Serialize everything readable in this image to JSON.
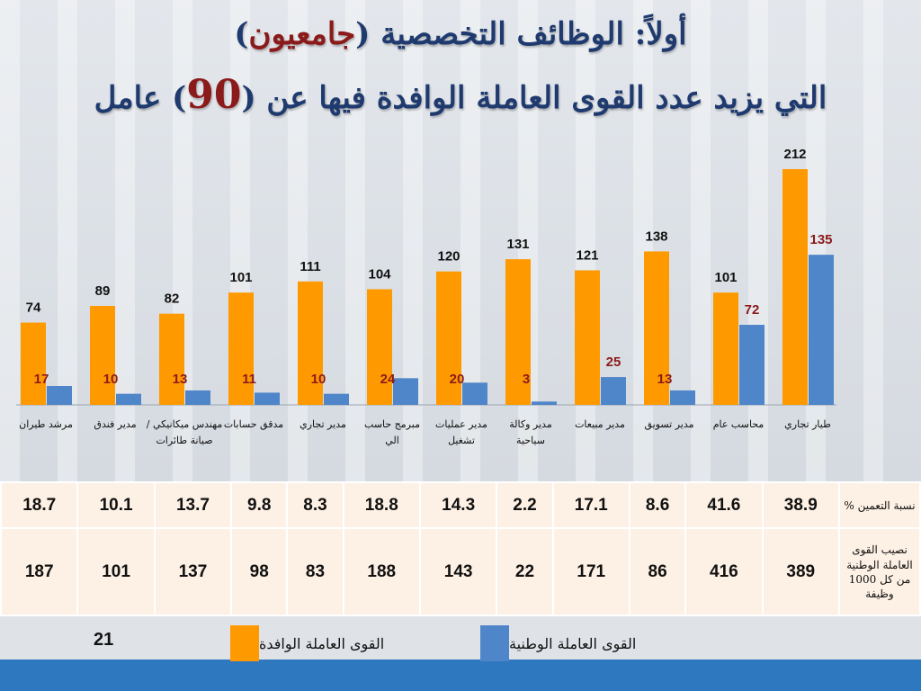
{
  "title_line1": "أولاً: الوظائف التخصصية (",
  "title_line1_highlight": "جامعيون",
  "title_line1_end": ")",
  "title_line2_start": "التي يزيد عدد القوى العاملة الوافدة فيها عن (",
  "title_line2_number": "90",
  "title_line2_end": ")  عامل",
  "colors": {
    "expat": "#ff9900",
    "national": "#4f85c9",
    "national_label": "#8b1a1a",
    "title": "#1f3a6e"
  },
  "chart_data": {
    "type": "bar",
    "categories": [
      "طيار تجاري",
      "محاسب عام",
      "مدير تسويق",
      "مدير مبيعات",
      "مدير وكالة سياحية",
      "مدير عمليات تشغيل",
      "مبرمج حاسب الي",
      "مدير تجاري",
      "مدقق حسابات",
      "مهندس ميكانيكي / صيانة طائرات",
      "مدير فندق",
      "مرشد طيران"
    ],
    "series": [
      {
        "name": "القوى العاملة الوافدة",
        "values": [
          212,
          101,
          138,
          121,
          131,
          120,
          104,
          111,
          101,
          82,
          89,
          74
        ]
      },
      {
        "name": "القوى العاملة الوطنية",
        "values": [
          135,
          72,
          13,
          25,
          3,
          20,
          24,
          10,
          11,
          13,
          10,
          17
        ]
      }
    ],
    "ylim": [
      0,
      212
    ],
    "legend": "bottom"
  },
  "table": {
    "row1_label": "نسبة التعمين %",
    "row1_values": [
      "38.9",
      "41.6",
      "8.6",
      "17.1",
      "2.2",
      "14.3",
      "18.8",
      "8.3",
      "9.8",
      "13.7",
      "10.1",
      "18.7"
    ],
    "row2_label": "نصيب القوى العاملة الوطنية من كل 1000 وظيفة",
    "row2_values": [
      "389",
      "416",
      "86",
      "171",
      "22",
      "143",
      "188",
      "83",
      "98",
      "137",
      "101",
      "187"
    ]
  },
  "page_number": "21",
  "legend": {
    "expat_label": "القوى العاملة الوافدة",
    "national_label": "القوى العاملة الوطنية"
  }
}
